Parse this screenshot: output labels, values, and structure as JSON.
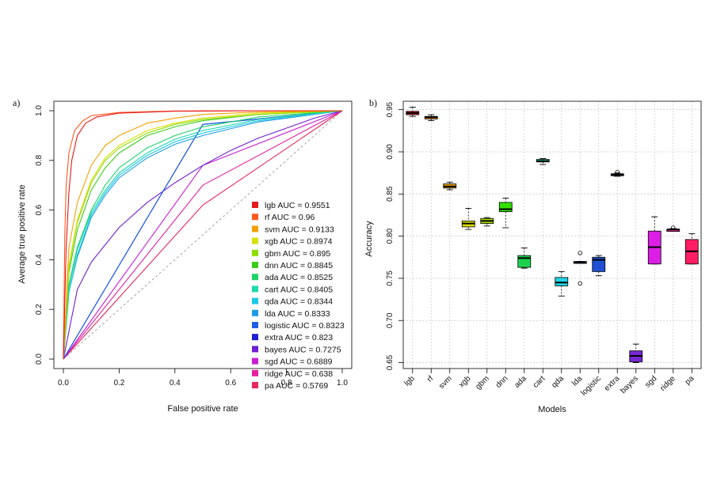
{
  "chart_data": [
    {
      "type": "line",
      "panel_label": "a)",
      "xlabel": "False positive rate",
      "ylabel": "Average true positive rate",
      "xlim": [
        0,
        1
      ],
      "ylim": [
        0,
        1
      ],
      "x_ticks": [
        "0.0",
        "0.2",
        "0.4",
        "0.6",
        "0.8",
        "1.0"
      ],
      "y_ticks": [
        "0.0",
        "0.2",
        "0.4",
        "0.6",
        "0.8",
        "1.0"
      ],
      "diagonal_reference": true,
      "legend_position": "bottom-right",
      "series": [
        {
          "name": "lgb AUC = 0.9551",
          "color": "#e41a1c",
          "auc": 0.9551,
          "x": [
            0,
            0.01,
            0.02,
            0.03,
            0.05,
            0.08,
            0.12,
            0.2,
            0.4,
            0.7,
            1.0
          ],
          "y": [
            0,
            0.45,
            0.67,
            0.8,
            0.9,
            0.95,
            0.975,
            0.99,
            0.998,
            1.0,
            1.0
          ]
        },
        {
          "name": "rf AUC = 0.96",
          "color": "#ff5a1e",
          "auc": 0.96,
          "x": [
            0,
            0.005,
            0.01,
            0.02,
            0.04,
            0.07,
            0.1,
            0.2,
            0.4,
            0.7,
            1.0
          ],
          "y": [
            0,
            0.5,
            0.7,
            0.83,
            0.92,
            0.96,
            0.98,
            0.993,
            0.999,
            1.0,
            1.0
          ]
        },
        {
          "name": "svm AUC = 0.9133",
          "color": "#f5a000",
          "auc": 0.9133,
          "x": [
            0,
            0.02,
            0.05,
            0.1,
            0.15,
            0.2,
            0.3,
            0.4,
            0.5,
            0.7,
            1.0
          ],
          "y": [
            0,
            0.45,
            0.63,
            0.78,
            0.86,
            0.9,
            0.95,
            0.97,
            0.985,
            0.995,
            1.0
          ]
        },
        {
          "name": "xgb AUC = 0.8974",
          "color": "#d8e000",
          "auc": 0.8974,
          "x": [
            0,
            0.02,
            0.05,
            0.1,
            0.15,
            0.2,
            0.3,
            0.4,
            0.5,
            0.7,
            1.0
          ],
          "y": [
            0,
            0.38,
            0.56,
            0.72,
            0.81,
            0.86,
            0.92,
            0.95,
            0.97,
            0.99,
            1.0
          ]
        },
        {
          "name": "gbm AUC = 0.895",
          "color": "#8edc00",
          "auc": 0.895,
          "x": [
            0,
            0.02,
            0.05,
            0.1,
            0.15,
            0.2,
            0.3,
            0.4,
            0.5,
            0.7,
            1.0
          ],
          "y": [
            0,
            0.37,
            0.55,
            0.71,
            0.8,
            0.85,
            0.91,
            0.945,
            0.965,
            0.985,
            1.0
          ]
        },
        {
          "name": "dnn AUC = 0.8845",
          "color": "#3ccc1a",
          "auc": 0.8845,
          "x": [
            0,
            0.02,
            0.05,
            0.1,
            0.15,
            0.2,
            0.3,
            0.4,
            0.5,
            0.7,
            1.0
          ],
          "y": [
            0,
            0.35,
            0.52,
            0.68,
            0.77,
            0.83,
            0.9,
            0.935,
            0.96,
            0.985,
            1.0
          ]
        },
        {
          "name": "ada AUC = 0.8525",
          "color": "#1ed26a",
          "auc": 0.8525,
          "x": [
            0,
            0.02,
            0.05,
            0.1,
            0.15,
            0.2,
            0.3,
            0.4,
            0.5,
            0.7,
            1.0
          ],
          "y": [
            0,
            0.3,
            0.45,
            0.6,
            0.7,
            0.77,
            0.85,
            0.9,
            0.935,
            0.975,
            1.0
          ]
        },
        {
          "name": "cart AUC = 0.8405",
          "color": "#20d9ad",
          "auc": 0.8405,
          "x": [
            0,
            0.02,
            0.05,
            0.1,
            0.15,
            0.2,
            0.3,
            0.4,
            0.5,
            0.7,
            1.0
          ],
          "y": [
            0,
            0.29,
            0.44,
            0.59,
            0.68,
            0.75,
            0.83,
            0.885,
            0.92,
            0.965,
            1.0
          ]
        },
        {
          "name": "qda AUC = 0.8344",
          "color": "#1ec8e6",
          "auc": 0.8344,
          "x": [
            0,
            0.02,
            0.05,
            0.1,
            0.15,
            0.2,
            0.3,
            0.4,
            0.5,
            0.7,
            1.0
          ],
          "y": [
            0,
            0.27,
            0.42,
            0.58,
            0.67,
            0.74,
            0.82,
            0.875,
            0.91,
            0.96,
            1.0
          ]
        },
        {
          "name": "lda AUC = 0.8333",
          "color": "#1e9be6",
          "auc": 0.8333,
          "x": [
            0,
            0.02,
            0.05,
            0.1,
            0.15,
            0.2,
            0.3,
            0.4,
            0.5,
            0.7,
            1.0
          ],
          "y": [
            0,
            0.27,
            0.41,
            0.57,
            0.66,
            0.73,
            0.81,
            0.865,
            0.9,
            0.955,
            1.0
          ]
        },
        {
          "name": "logistic AUC = 0.8323",
          "color": "#1e5fe6",
          "auc": 0.8323,
          "x": [
            0,
            0.5,
            1.0
          ],
          "y": [
            0,
            0.945,
            1.0
          ]
        },
        {
          "name": "extra AUC = 0.823",
          "color": "#1e1ed2",
          "auc": 0.823,
          "x": [
            0,
            0.5,
            1.0
          ],
          "y": [
            0,
            0.945,
            1.0
          ]
        },
        {
          "name": "bayes AUC = 0.7275",
          "color": "#6e1ed2",
          "auc": 0.7275,
          "x": [
            0,
            0.05,
            0.1,
            0.2,
            0.3,
            0.4,
            0.5,
            0.6,
            0.7,
            0.8,
            0.9,
            1.0
          ],
          "y": [
            0,
            0.28,
            0.39,
            0.53,
            0.63,
            0.71,
            0.78,
            0.84,
            0.89,
            0.93,
            0.97,
            1.0
          ]
        },
        {
          "name": "sgd AUC = 0.6889",
          "color": "#c81ed2",
          "auc": 0.6889,
          "x": [
            0,
            0.5,
            1.0
          ],
          "y": [
            0,
            0.78,
            1.0
          ]
        },
        {
          "name": "ridge AUC = 0.638",
          "color": "#e61ea0",
          "auc": 0.638,
          "x": [
            0,
            0.5,
            1.0
          ],
          "y": [
            0,
            0.7,
            1.0
          ]
        },
        {
          "name": "pa AUC = 0.5769",
          "color": "#e6285a",
          "auc": 0.5769,
          "x": [
            0,
            0.5,
            1.0
          ],
          "y": [
            0,
            0.62,
            1.0
          ]
        }
      ]
    },
    {
      "type": "box",
      "panel_label": "b)",
      "xlabel": "Models",
      "ylabel": "Accuracy",
      "ylim": [
        0.643,
        0.96
      ],
      "y_ticks": [
        "0.65",
        "0.70",
        "0.75",
        "0.80",
        "0.85",
        "0.90",
        "0.95"
      ],
      "grid": true,
      "categories": [
        "lgb",
        "rf",
        "svm",
        "xgb",
        "gbm",
        "dnn",
        "ada",
        "cart",
        "qda",
        "lda",
        "logistic",
        "extra",
        "bayes",
        "sgd",
        "ridge",
        "pa"
      ],
      "boxes": [
        {
          "name": "lgb",
          "color": "#e41a1c",
          "min": 0.942,
          "q1": 0.944,
          "median": 0.946,
          "q3": 0.948,
          "max": 0.953,
          "outliers": []
        },
        {
          "name": "rf",
          "color": "#ff7f0e",
          "min": 0.937,
          "q1": 0.939,
          "median": 0.941,
          "q3": 0.942,
          "max": 0.944,
          "outliers": []
        },
        {
          "name": "svm",
          "color": "#f0a500",
          "min": 0.855,
          "q1": 0.857,
          "median": 0.859,
          "q3": 0.862,
          "max": 0.864,
          "outliers": []
        },
        {
          "name": "xgb",
          "color": "#e0e000",
          "min": 0.808,
          "q1": 0.811,
          "median": 0.815,
          "q3": 0.818,
          "max": 0.833,
          "outliers": []
        },
        {
          "name": "gbm",
          "color": "#a8e000",
          "min": 0.812,
          "q1": 0.815,
          "median": 0.818,
          "q3": 0.821,
          "max": 0.822,
          "outliers": []
        },
        {
          "name": "dnn",
          "color": "#33e000",
          "min": 0.81,
          "q1": 0.829,
          "median": 0.832,
          "q3": 0.84,
          "max": 0.845,
          "outliers": []
        },
        {
          "name": "ada",
          "color": "#1ed24f",
          "min": 0.762,
          "q1": 0.763,
          "median": 0.774,
          "q3": 0.777,
          "max": 0.786,
          "outliers": []
        },
        {
          "name": "cart",
          "color": "#16c99a",
          "min": 0.885,
          "q1": 0.888,
          "median": 0.889,
          "q3": 0.891,
          "max": 0.892,
          "outliers": []
        },
        {
          "name": "qda",
          "color": "#1ed2e6",
          "min": 0.729,
          "q1": 0.741,
          "median": 0.745,
          "q3": 0.751,
          "max": 0.758,
          "outliers": []
        },
        {
          "name": "lda",
          "color": "#1e90e6",
          "min": 0.768,
          "q1": 0.768,
          "median": 0.769,
          "q3": 0.77,
          "max": 0.77,
          "outliers": [
            0.744,
            0.78
          ]
        },
        {
          "name": "logistic",
          "color": "#1e50d2",
          "min": 0.753,
          "q1": 0.758,
          "median": 0.772,
          "q3": 0.775,
          "max": 0.777,
          "outliers": []
        },
        {
          "name": "extra",
          "color": "#1e1ec8",
          "min": 0.871,
          "q1": 0.872,
          "median": 0.873,
          "q3": 0.874,
          "max": 0.875,
          "outliers": [
            0.876
          ]
        },
        {
          "name": "bayes",
          "color": "#7828d2",
          "min": 0.65,
          "q1": 0.651,
          "median": 0.658,
          "q3": 0.664,
          "max": 0.672,
          "outliers": []
        },
        {
          "name": "sgd",
          "color": "#dc1ee6",
          "min": 0.767,
          "q1": 0.767,
          "median": 0.787,
          "q3": 0.806,
          "max": 0.823,
          "outliers": []
        },
        {
          "name": "ridge",
          "color": "#e61e8c",
          "min": 0.807,
          "q1": 0.807,
          "median": 0.808,
          "q3": 0.808,
          "max": 0.809,
          "outliers": [
            0.81
          ]
        },
        {
          "name": "pa",
          "color": "#ff1e64",
          "min": 0.767,
          "q1": 0.767,
          "median": 0.782,
          "q3": 0.796,
          "max": 0.803,
          "outliers": []
        }
      ]
    }
  ]
}
